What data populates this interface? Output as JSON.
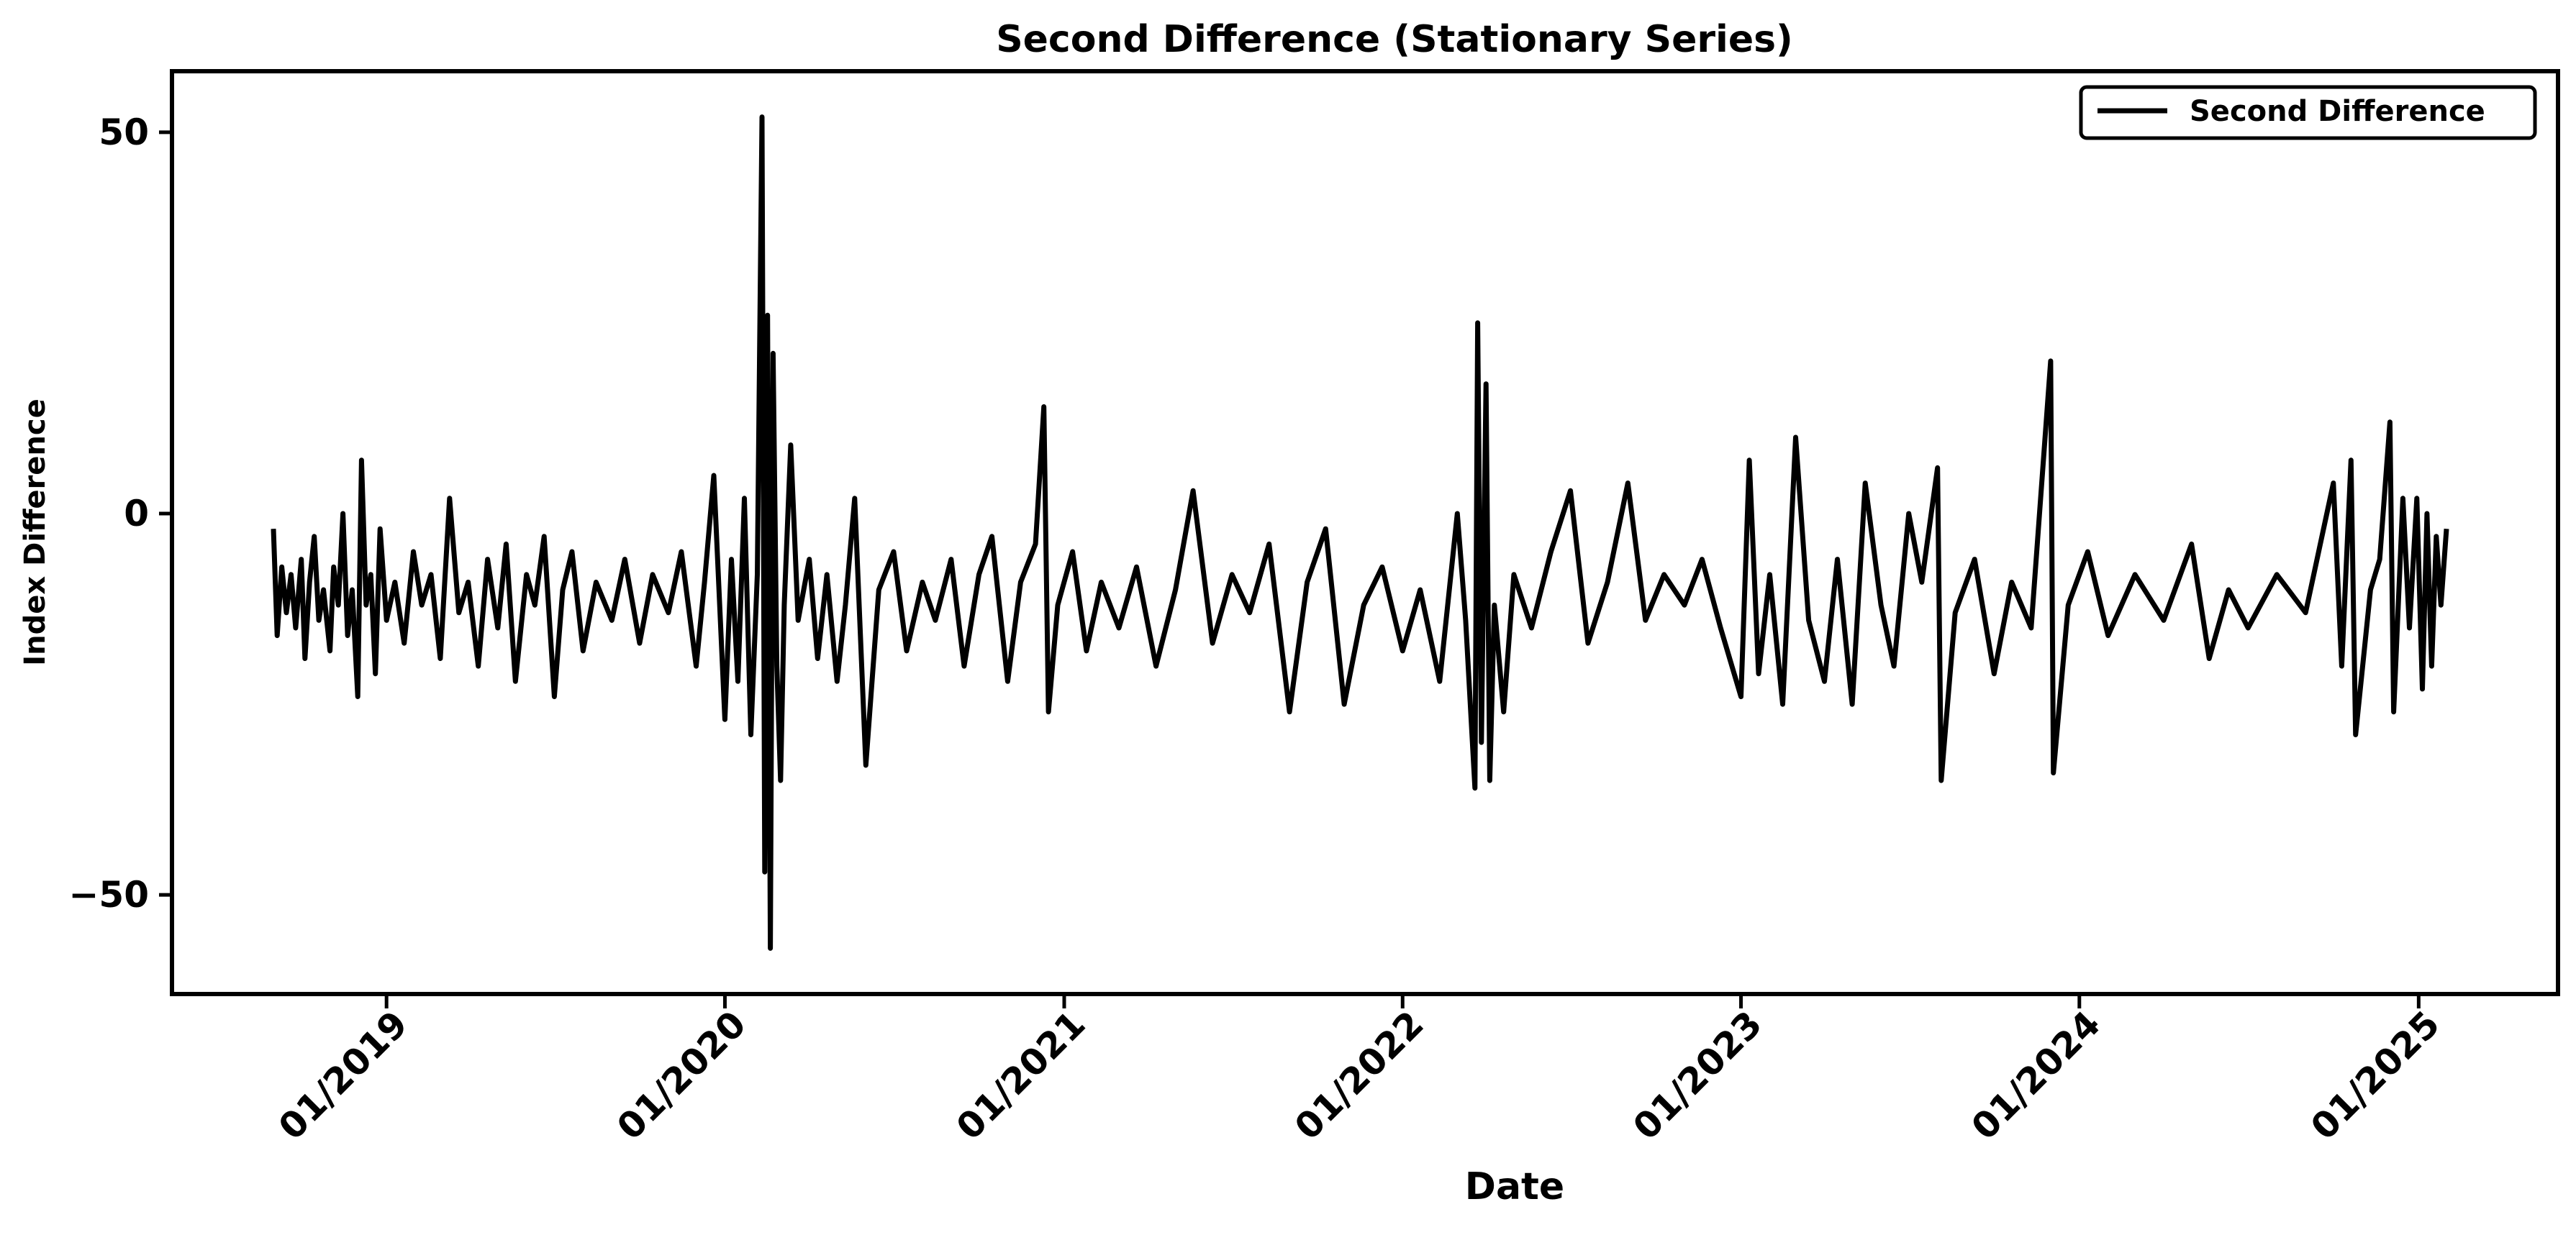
{
  "chart_data": {
    "type": "line",
    "title": "Second Difference (Stationary Series)",
    "xlabel": "Date",
    "ylabel": "Index Difference",
    "x_range": [
      "2018-09-01",
      "2025-01-31"
    ],
    "ylim": [
      -63,
      58
    ],
    "y_ticks": [
      50,
      0,
      -50
    ],
    "x_ticks": [
      {
        "date": "2019-01-01",
        "label": "01/2019"
      },
      {
        "date": "2020-01-01",
        "label": "01/2020"
      },
      {
        "date": "2021-01-01",
        "label": "01/2021"
      },
      {
        "date": "2022-01-01",
        "label": "01/2022"
      },
      {
        "date": "2023-01-01",
        "label": "01/2023"
      },
      {
        "date": "2024-01-01",
        "label": "01/2024"
      },
      {
        "date": "2025-01-01",
        "label": "01/2025"
      }
    ],
    "grid": false,
    "legend_position": "top-right",
    "line_color": "#000000",
    "series": [
      {
        "name": "Second Difference",
        "points": [
          [
            "2018-09-01",
            -2
          ],
          [
            "2018-09-05",
            -16
          ],
          [
            "2018-09-10",
            -7
          ],
          [
            "2018-09-15",
            -13
          ],
          [
            "2018-09-20",
            -8
          ],
          [
            "2018-09-25",
            -15
          ],
          [
            "2018-10-01",
            -6
          ],
          [
            "2018-10-05",
            -19
          ],
          [
            "2018-10-10",
            -9
          ],
          [
            "2018-10-15",
            -3
          ],
          [
            "2018-10-20",
            -14
          ],
          [
            "2018-10-25",
            -10
          ],
          [
            "2018-11-01",
            -18
          ],
          [
            "2018-11-05",
            -7
          ],
          [
            "2018-11-10",
            -12
          ],
          [
            "2018-11-15",
            0
          ],
          [
            "2018-11-20",
            -16
          ],
          [
            "2018-11-25",
            -10
          ],
          [
            "2018-12-01",
            -24
          ],
          [
            "2018-12-05",
            7
          ],
          [
            "2018-12-10",
            -12
          ],
          [
            "2018-12-15",
            -8
          ],
          [
            "2018-12-20",
            -21
          ],
          [
            "2018-12-25",
            -2
          ],
          [
            "2019-01-01",
            -14
          ],
          [
            "2019-01-10",
            -9
          ],
          [
            "2019-01-20",
            -17
          ],
          [
            "2019-01-30",
            -5
          ],
          [
            "2019-02-08",
            -12
          ],
          [
            "2019-02-18",
            -8
          ],
          [
            "2019-02-28",
            -19
          ],
          [
            "2019-03-10",
            2
          ],
          [
            "2019-03-20",
            -13
          ],
          [
            "2019-03-30",
            -9
          ],
          [
            "2019-04-10",
            -20
          ],
          [
            "2019-04-20",
            -6
          ],
          [
            "2019-05-01",
            -15
          ],
          [
            "2019-05-10",
            -4
          ],
          [
            "2019-05-20",
            -22
          ],
          [
            "2019-06-01",
            -8
          ],
          [
            "2019-06-10",
            -12
          ],
          [
            "2019-06-20",
            -3
          ],
          [
            "2019-07-01",
            -24
          ],
          [
            "2019-07-10",
            -10
          ],
          [
            "2019-07-20",
            -5
          ],
          [
            "2019-08-01",
            -18
          ],
          [
            "2019-08-15",
            -9
          ],
          [
            "2019-09-01",
            -14
          ],
          [
            "2019-09-15",
            -6
          ],
          [
            "2019-10-01",
            -17
          ],
          [
            "2019-10-15",
            -8
          ],
          [
            "2019-11-01",
            -13
          ],
          [
            "2019-11-15",
            -5
          ],
          [
            "2019-12-01",
            -20
          ],
          [
            "2019-12-10",
            -9
          ],
          [
            "2019-12-20",
            5
          ],
          [
            "2020-01-01",
            -27
          ],
          [
            "2020-01-08",
            -6
          ],
          [
            "2020-01-15",
            -22
          ],
          [
            "2020-01-22",
            2
          ],
          [
            "2020-01-29",
            -29
          ],
          [
            "2020-02-05",
            -8
          ],
          [
            "2020-02-10",
            52
          ],
          [
            "2020-02-13",
            -47
          ],
          [
            "2020-02-16",
            26
          ],
          [
            "2020-02-19",
            -57
          ],
          [
            "2020-02-22",
            21
          ],
          [
            "2020-02-26",
            -20
          ],
          [
            "2020-03-01",
            -35
          ],
          [
            "2020-03-05",
            -12
          ],
          [
            "2020-03-12",
            9
          ],
          [
            "2020-03-20",
            -14
          ],
          [
            "2020-04-01",
            -6
          ],
          [
            "2020-04-10",
            -19
          ],
          [
            "2020-04-20",
            -8
          ],
          [
            "2020-05-01",
            -22
          ],
          [
            "2020-05-10",
            -12
          ],
          [
            "2020-05-20",
            2
          ],
          [
            "2020-06-01",
            -33
          ],
          [
            "2020-06-15",
            -10
          ],
          [
            "2020-07-01",
            -5
          ],
          [
            "2020-07-15",
            -18
          ],
          [
            "2020-08-01",
            -9
          ],
          [
            "2020-08-15",
            -14
          ],
          [
            "2020-09-01",
            -6
          ],
          [
            "2020-09-15",
            -20
          ],
          [
            "2020-10-01",
            -8
          ],
          [
            "2020-10-15",
            -3
          ],
          [
            "2020-11-01",
            -22
          ],
          [
            "2020-11-15",
            -9
          ],
          [
            "2020-12-01",
            -4
          ],
          [
            "2020-12-10",
            14
          ],
          [
            "2020-12-15",
            -26
          ],
          [
            "2020-12-25",
            -12
          ],
          [
            "2021-01-10",
            -5
          ],
          [
            "2021-01-25",
            -18
          ],
          [
            "2021-02-10",
            -9
          ],
          [
            "2021-03-01",
            -15
          ],
          [
            "2021-03-20",
            -7
          ],
          [
            "2021-04-10",
            -20
          ],
          [
            "2021-05-01",
            -10
          ],
          [
            "2021-05-20",
            3
          ],
          [
            "2021-06-10",
            -17
          ],
          [
            "2021-07-01",
            -8
          ],
          [
            "2021-07-20",
            -13
          ],
          [
            "2021-08-10",
            -4
          ],
          [
            "2021-09-01",
            -26
          ],
          [
            "2021-09-20",
            -9
          ],
          [
            "2021-10-10",
            -2
          ],
          [
            "2021-10-30",
            -25
          ],
          [
            "2021-11-20",
            -12
          ],
          [
            "2021-12-10",
            -7
          ],
          [
            "2022-01-01",
            -18
          ],
          [
            "2022-01-20",
            -10
          ],
          [
            "2022-02-10",
            -22
          ],
          [
            "2022-03-01",
            0
          ],
          [
            "2022-03-10",
            -14
          ],
          [
            "2022-03-20",
            -36
          ],
          [
            "2022-03-23",
            25
          ],
          [
            "2022-03-27",
            -30
          ],
          [
            "2022-04-01",
            17
          ],
          [
            "2022-04-05",
            -35
          ],
          [
            "2022-04-10",
            -12
          ],
          [
            "2022-04-20",
            -26
          ],
          [
            "2022-05-01",
            -8
          ],
          [
            "2022-05-20",
            -15
          ],
          [
            "2022-06-10",
            -5
          ],
          [
            "2022-07-01",
            3
          ],
          [
            "2022-07-20",
            -17
          ],
          [
            "2022-08-10",
            -9
          ],
          [
            "2022-09-01",
            4
          ],
          [
            "2022-09-20",
            -14
          ],
          [
            "2022-10-10",
            -8
          ],
          [
            "2022-11-01",
            -12
          ],
          [
            "2022-11-20",
            -6
          ],
          [
            "2022-12-10",
            -15
          ],
          [
            "2023-01-01",
            -24
          ],
          [
            "2023-01-10",
            7
          ],
          [
            "2023-01-20",
            -21
          ],
          [
            "2023-02-01",
            -8
          ],
          [
            "2023-02-15",
            -25
          ],
          [
            "2023-03-01",
            10
          ],
          [
            "2023-03-15",
            -14
          ],
          [
            "2023-04-01",
            -22
          ],
          [
            "2023-04-15",
            -6
          ],
          [
            "2023-05-01",
            -25
          ],
          [
            "2023-05-15",
            4
          ],
          [
            "2023-06-01",
            -12
          ],
          [
            "2023-06-15",
            -20
          ],
          [
            "2023-07-01",
            0
          ],
          [
            "2023-07-15",
            -9
          ],
          [
            "2023-08-01",
            6
          ],
          [
            "2023-08-05",
            -35
          ],
          [
            "2023-08-20",
            -13
          ],
          [
            "2023-09-10",
            -6
          ],
          [
            "2023-10-01",
            -21
          ],
          [
            "2023-10-20",
            -9
          ],
          [
            "2023-11-10",
            -15
          ],
          [
            "2023-12-01",
            20
          ],
          [
            "2023-12-04",
            -34
          ],
          [
            "2023-12-20",
            -12
          ],
          [
            "2024-01-10",
            -5
          ],
          [
            "2024-02-01",
            -16
          ],
          [
            "2024-03-01",
            -8
          ],
          [
            "2024-04-01",
            -14
          ],
          [
            "2024-05-01",
            -4
          ],
          [
            "2024-05-20",
            -19
          ],
          [
            "2024-06-10",
            -10
          ],
          [
            "2024-07-01",
            -15
          ],
          [
            "2024-08-01",
            -8
          ],
          [
            "2024-09-01",
            -13
          ],
          [
            "2024-10-01",
            4
          ],
          [
            "2024-10-10",
            -20
          ],
          [
            "2024-10-20",
            7
          ],
          [
            "2024-10-25",
            -29
          ],
          [
            "2024-11-10",
            -10
          ],
          [
            "2024-11-20",
            -6
          ],
          [
            "2024-12-01",
            12
          ],
          [
            "2024-12-05",
            -26
          ],
          [
            "2024-12-15",
            2
          ],
          [
            "2024-12-22",
            -15
          ],
          [
            "2024-12-30",
            2
          ],
          [
            "2025-01-05",
            -23
          ],
          [
            "2025-01-10",
            0
          ],
          [
            "2025-01-15",
            -20
          ],
          [
            "2025-01-20",
            -3
          ],
          [
            "2025-01-25",
            -12
          ],
          [
            "2025-01-31",
            -2
          ]
        ]
      }
    ]
  }
}
